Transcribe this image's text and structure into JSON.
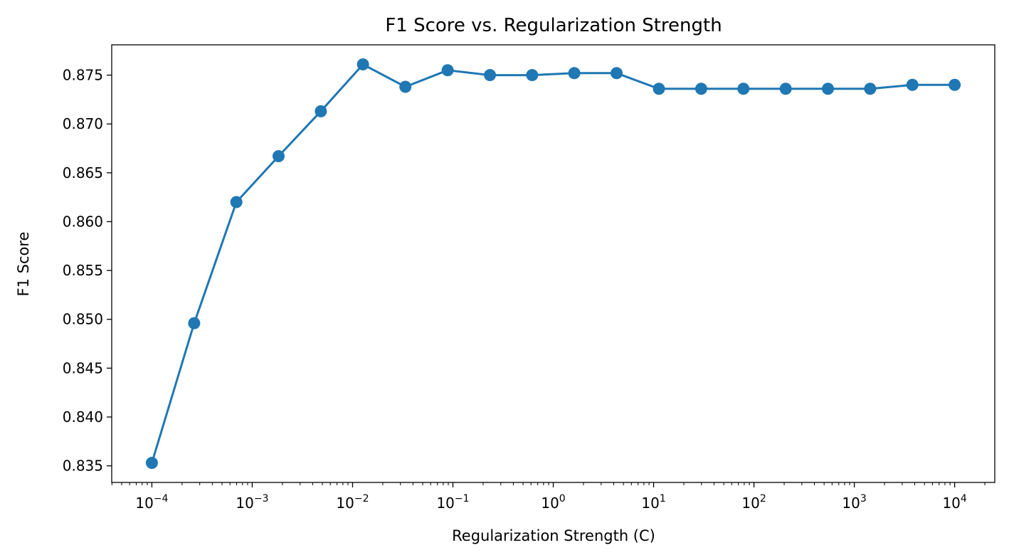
{
  "chart_data": {
    "type": "line",
    "title": "F1 Score vs. Regularization Strength",
    "xlabel": "Regularization Strength (C)",
    "ylabel": "F1 Score",
    "x_scale": "log",
    "xlim": [
      3.98e-05,
      25100
    ],
    "ylim": [
      0.8333,
      0.8781
    ],
    "grid": false,
    "marker": "circle",
    "line_color": "#1f77b4",
    "x_ticks": [
      {
        "value": 0.0001,
        "label": "10^-4"
      },
      {
        "value": 0.001,
        "label": "10^-3"
      },
      {
        "value": 0.01,
        "label": "10^-2"
      },
      {
        "value": 0.1,
        "label": "10^-1"
      },
      {
        "value": 1,
        "label": "10^0"
      },
      {
        "value": 10,
        "label": "10^1"
      },
      {
        "value": 100,
        "label": "10^2"
      },
      {
        "value": 1000,
        "label": "10^3"
      },
      {
        "value": 10000,
        "label": "10^4"
      }
    ],
    "y_ticks": [
      {
        "value": 0.835,
        "label": "0.835"
      },
      {
        "value": 0.84,
        "label": "0.840"
      },
      {
        "value": 0.845,
        "label": "0.845"
      },
      {
        "value": 0.85,
        "label": "0.850"
      },
      {
        "value": 0.855,
        "label": "0.855"
      },
      {
        "value": 0.86,
        "label": "0.860"
      },
      {
        "value": 0.865,
        "label": "0.865"
      },
      {
        "value": 0.87,
        "label": "0.870"
      },
      {
        "value": 0.875,
        "label": "0.875"
      }
    ],
    "series": [
      {
        "x": [
          0.0001,
          0.000264,
          0.000695,
          0.00183,
          0.00483,
          0.0127,
          0.0336,
          0.0886,
          0.234,
          0.616,
          1.62,
          4.28,
          11.3,
          29.8,
          78.5,
          207,
          546,
          1438,
          3793,
          10000
        ],
        "y": [
          0.8353,
          0.8496,
          0.862,
          0.8667,
          0.8713,
          0.8761,
          0.8738,
          0.8755,
          0.875,
          0.875,
          0.8752,
          0.8752,
          0.8736,
          0.8736,
          0.8736,
          0.8736,
          0.8736,
          0.8736,
          0.874,
          0.874
        ]
      }
    ]
  }
}
